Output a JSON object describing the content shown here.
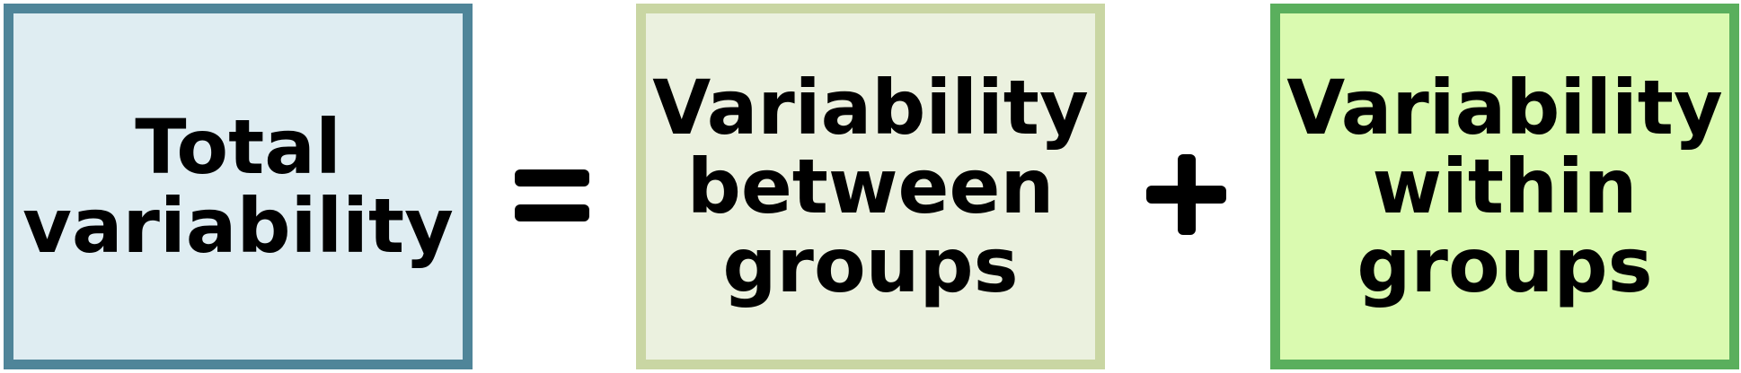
{
  "boxes": {
    "total": {
      "lines": [
        "Total",
        "variability"
      ],
      "fill_color": "#dfedf2",
      "border_color": "#4f8599"
    },
    "between": {
      "lines": [
        "Variability",
        "between",
        "groups"
      ],
      "fill_color": "#ebf1df",
      "border_color": "#c9d6a3"
    },
    "within": {
      "lines": [
        "Variability",
        "within",
        "groups"
      ],
      "fill_color": "#dafab0",
      "border_color": "#5aaf5d"
    }
  },
  "operators": {
    "equals": "=",
    "plus": "+"
  }
}
